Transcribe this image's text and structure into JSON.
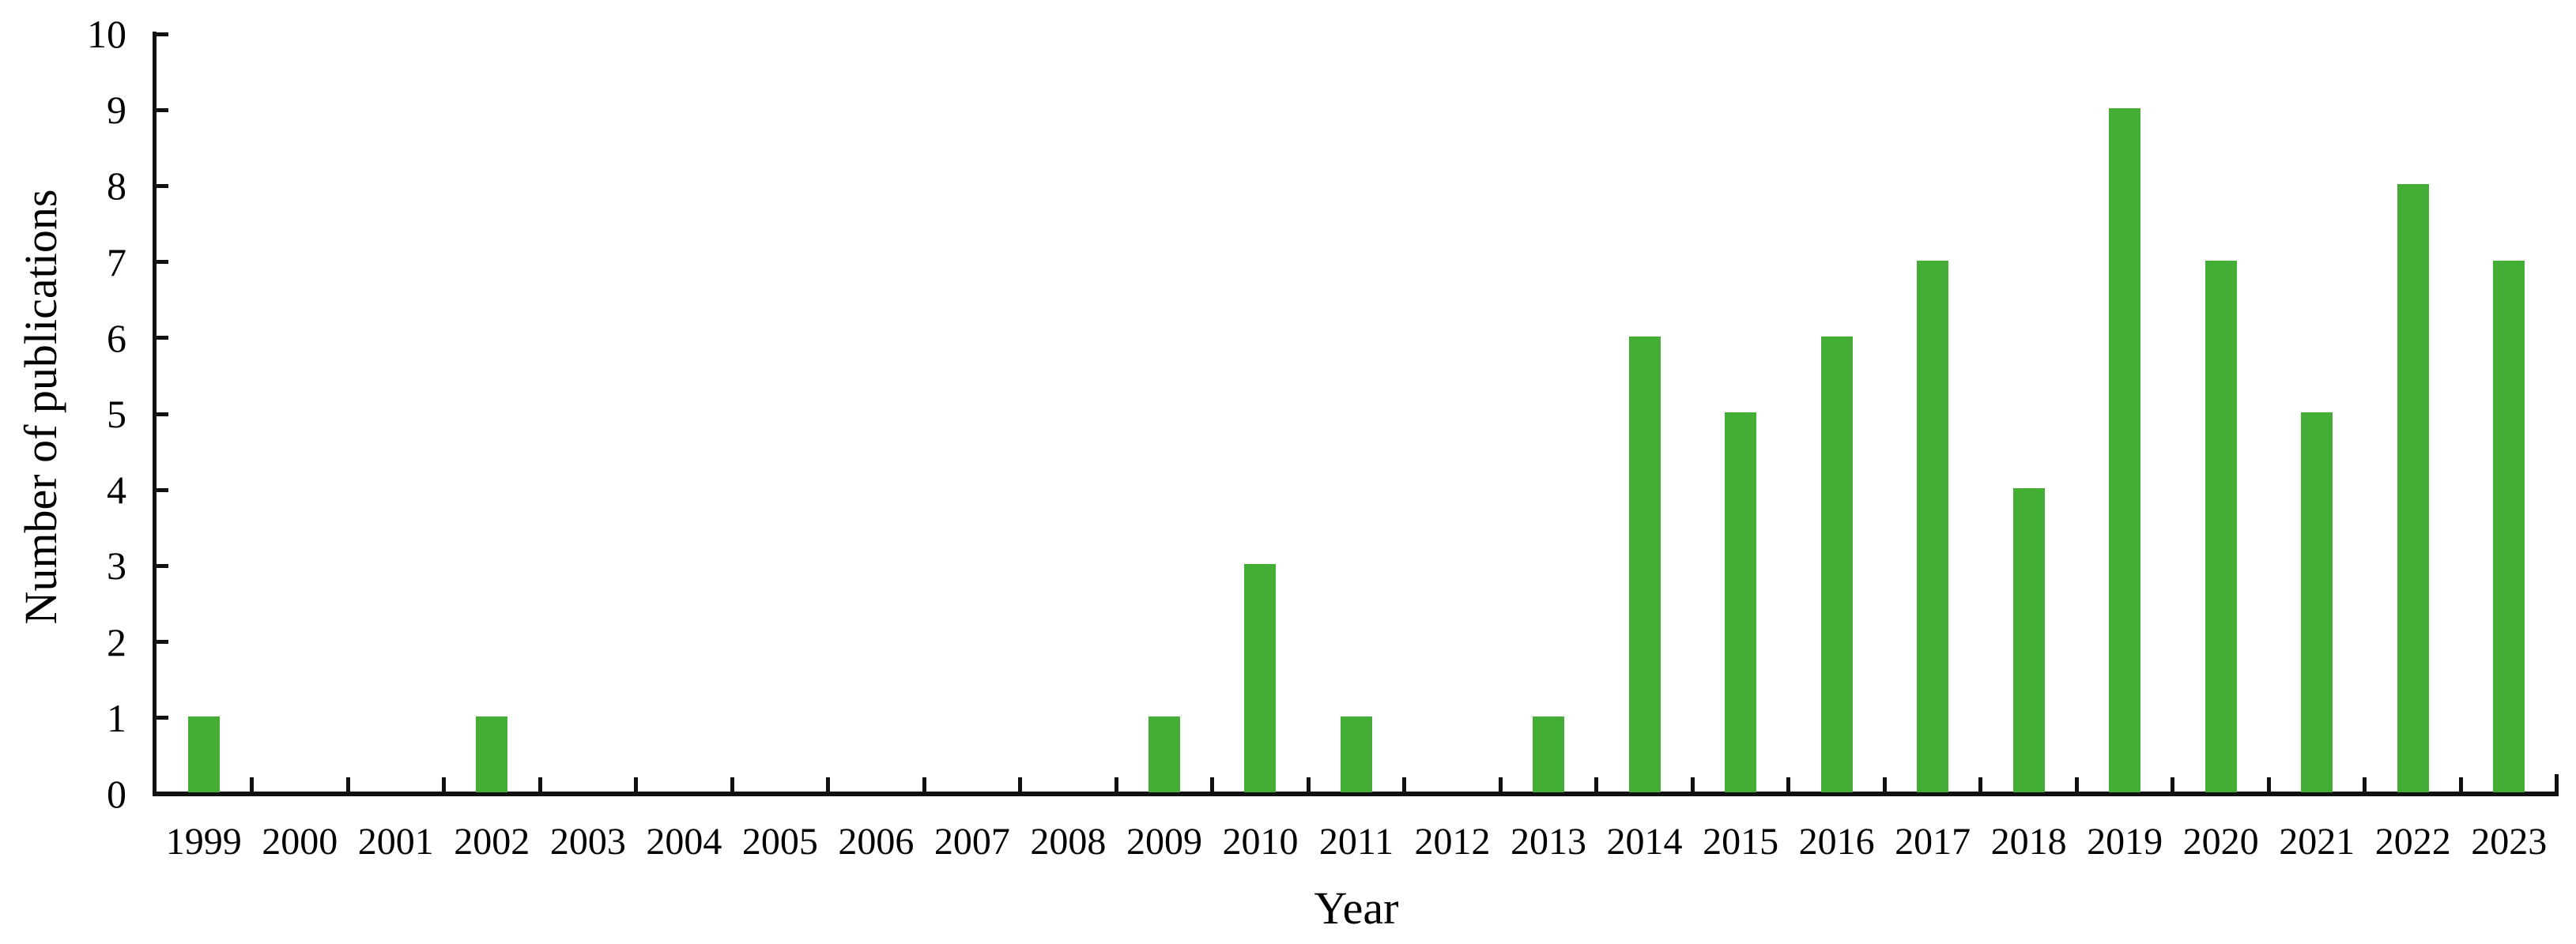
{
  "chart_data": {
    "type": "bar",
    "title": "",
    "xlabel": "Year",
    "ylabel": "Number of publications",
    "categories": [
      "1999",
      "2000",
      "2001",
      "2002",
      "2003",
      "2004",
      "2005",
      "2006",
      "2007",
      "2008",
      "2009",
      "2010",
      "2011",
      "2012",
      "2013",
      "2014",
      "2015",
      "2016",
      "2017",
      "2018",
      "2019",
      "2020",
      "2021",
      "2022",
      "2023"
    ],
    "values": [
      1,
      0,
      0,
      1,
      0,
      0,
      0,
      0,
      0,
      0,
      1,
      3,
      1,
      0,
      1,
      6,
      5,
      6,
      7,
      4,
      9,
      7,
      5,
      8,
      7
    ],
    "ylim": [
      0,
      10
    ],
    "yticks": [
      0,
      1,
      2,
      3,
      4,
      5,
      6,
      7,
      8,
      9,
      10
    ],
    "grid": false,
    "legend_position": "none",
    "bar_color": "#44ad35",
    "axis_color": "#111111",
    "text_color": "#000000"
  }
}
